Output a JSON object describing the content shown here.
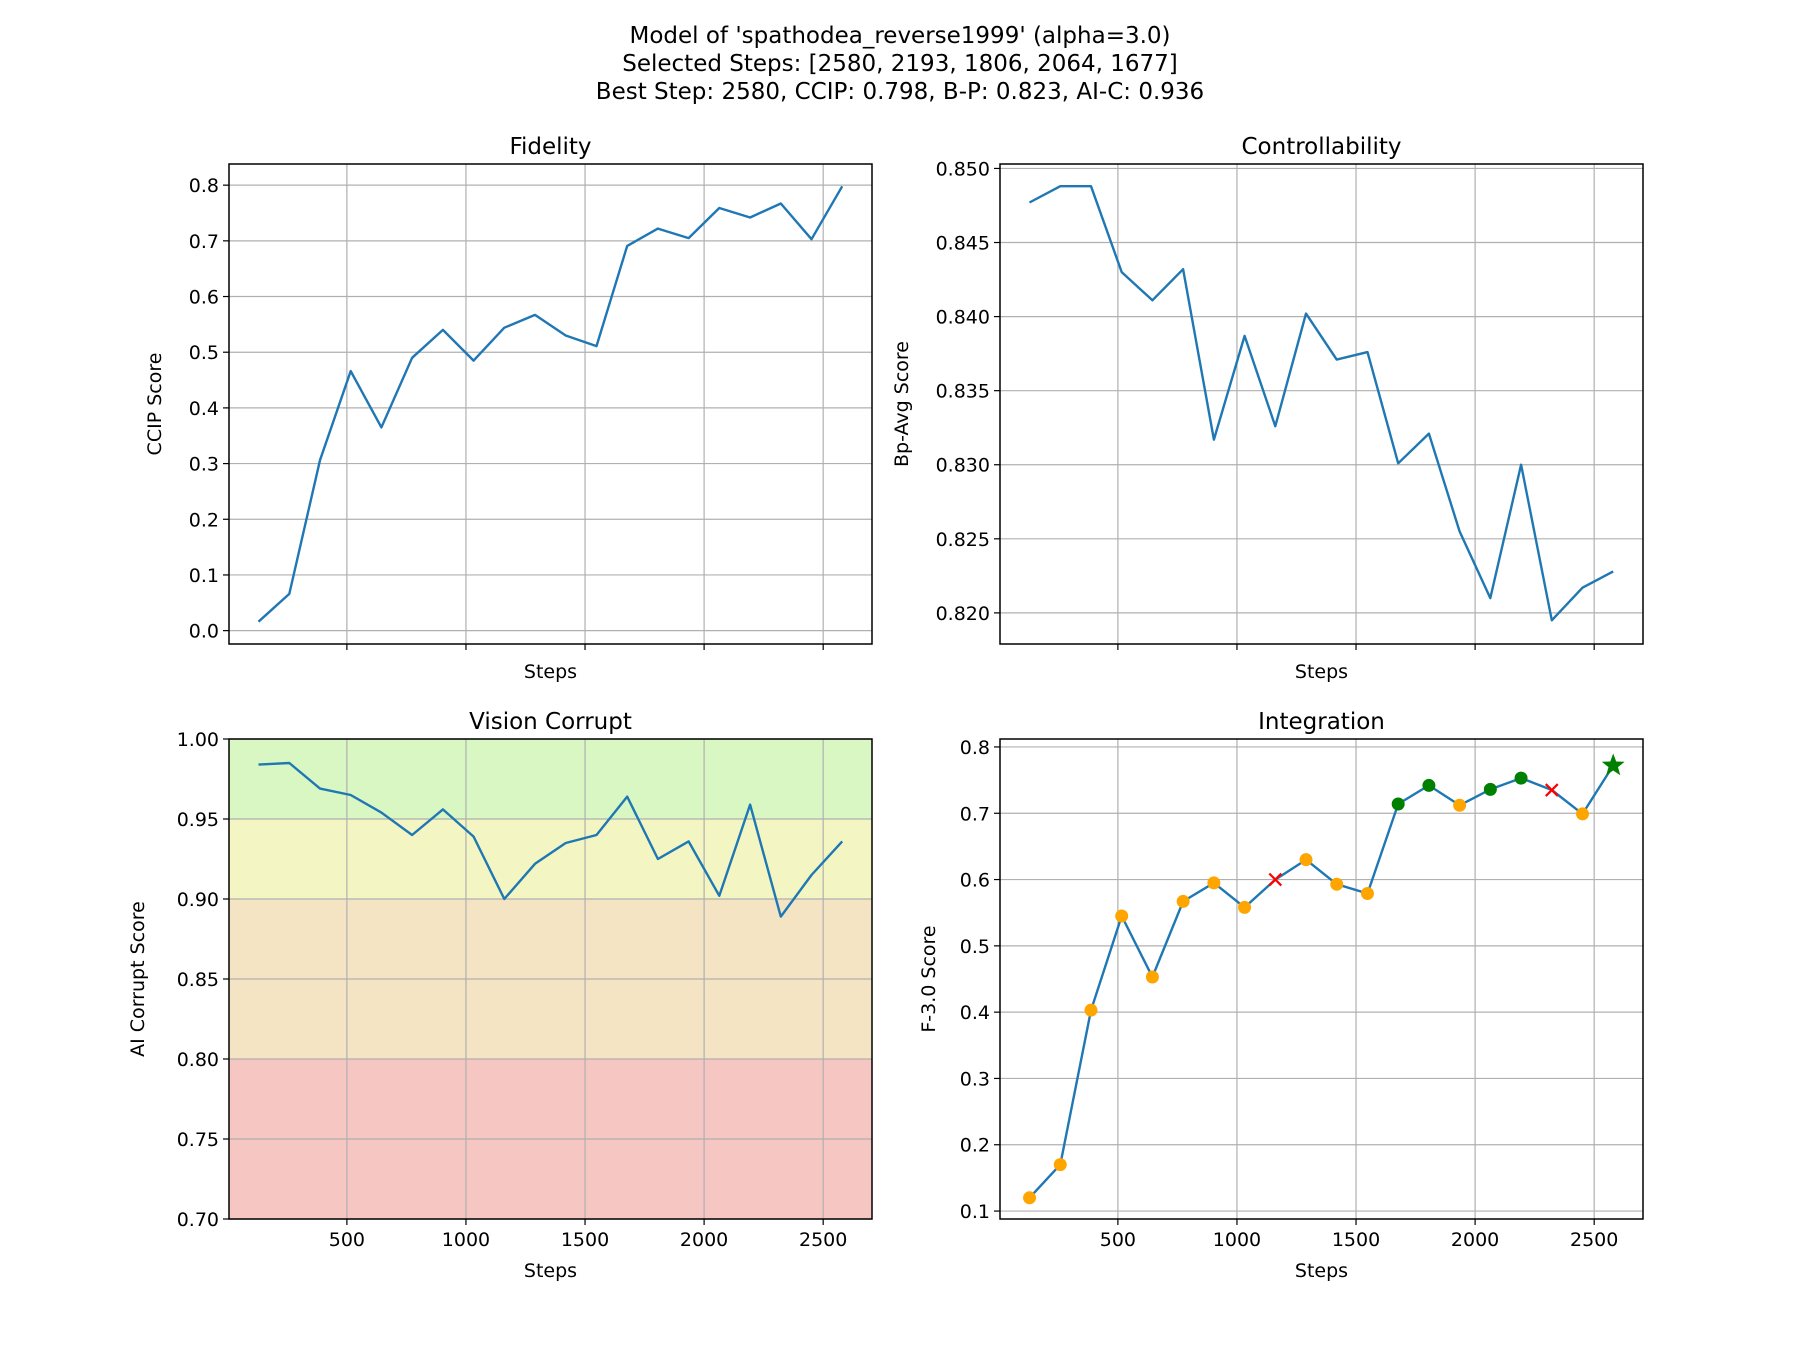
{
  "figure": {
    "title_lines": [
      "Model of 'spathodea_reverse1999' (alpha=3.0)",
      "Selected Steps: [2580, 2193, 1806, 2064, 1677]",
      "Best Step: 2580, CCIP: 0.798, B-P: 0.823, AI-C: 0.936"
    ]
  },
  "chart_data": [
    {
      "id": "fidelity",
      "type": "line",
      "title": "Fidelity",
      "xlabel": "Steps",
      "ylabel": "CCIP Score",
      "xlim": [
        5,
        2705
      ],
      "ylim": [
        -0.024,
        0.838
      ],
      "xticks": [
        500,
        1000,
        1500,
        2000,
        2500
      ],
      "show_xtick_labels": false,
      "yticks": [
        0.0,
        0.1,
        0.2,
        0.3,
        0.4,
        0.5,
        0.6,
        0.7,
        0.8
      ],
      "ytick_labels": [
        "0.0",
        "0.1",
        "0.2",
        "0.3",
        "0.4",
        "0.5",
        "0.6",
        "0.7",
        "0.8"
      ],
      "grid": true,
      "line_color": "#1f77b4",
      "x": [
        129,
        258,
        387,
        516,
        645,
        774,
        903,
        1032,
        1161,
        1290,
        1419,
        1548,
        1677,
        1806,
        1935,
        2064,
        2193,
        2322,
        2451,
        2580
      ],
      "y": [
        0.016,
        0.066,
        0.306,
        0.466,
        0.365,
        0.49,
        0.54,
        0.485,
        0.544,
        0.567,
        0.53,
        0.511,
        0.691,
        0.722,
        0.705,
        0.759,
        0.742,
        0.767,
        0.703,
        0.798
      ]
    },
    {
      "id": "controllability",
      "type": "line",
      "title": "Controllability",
      "xlabel": "Steps",
      "ylabel": "Bp-Avg Score",
      "xlim": [
        5,
        2705
      ],
      "ylim": [
        0.8179,
        0.8503
      ],
      "xticks": [
        500,
        1000,
        1500,
        2000,
        2500
      ],
      "show_xtick_labels": false,
      "yticks": [
        0.82,
        0.825,
        0.83,
        0.835,
        0.84,
        0.845,
        0.85
      ],
      "ytick_labels": [
        "0.820",
        "0.825",
        "0.830",
        "0.835",
        "0.840",
        "0.845",
        "0.850"
      ],
      "grid": true,
      "line_color": "#1f77b4",
      "x": [
        129,
        258,
        387,
        516,
        645,
        774,
        903,
        1032,
        1161,
        1290,
        1419,
        1548,
        1677,
        1806,
        1935,
        2064,
        2193,
        2322,
        2451,
        2580
      ],
      "y": [
        0.8477,
        0.8488,
        0.8488,
        0.843,
        0.8411,
        0.8432,
        0.8317,
        0.8387,
        0.8326,
        0.8402,
        0.8371,
        0.8376,
        0.8301,
        0.8321,
        0.8255,
        0.821,
        0.83,
        0.8195,
        0.8217,
        0.8228
      ]
    },
    {
      "id": "vision_corrupt",
      "type": "line",
      "title": "Vision Corrupt",
      "xlabel": "Steps",
      "ylabel": "AI Corrupt Score",
      "xlim": [
        5,
        2705
      ],
      "ylim": [
        0.7,
        1.0
      ],
      "xticks": [
        500,
        1000,
        1500,
        2000,
        2500
      ],
      "xtick_labels": [
        "500",
        "1000",
        "1500",
        "2000",
        "2500"
      ],
      "yticks": [
        0.7,
        0.75,
        0.8,
        0.85,
        0.9,
        0.95,
        1.0
      ],
      "ytick_labels": [
        "0.70",
        "0.75",
        "0.80",
        "0.85",
        "0.90",
        "0.95",
        "1.00"
      ],
      "grid": true,
      "line_color": "#1f77b4",
      "bands": [
        {
          "from": 0.7,
          "to": 0.8,
          "color": "#f5c6c2"
        },
        {
          "from": 0.8,
          "to": 0.9,
          "color": "#f5e4c3"
        },
        {
          "from": 0.9,
          "to": 0.95,
          "color": "#f3f6c2"
        },
        {
          "from": 0.95,
          "to": 1.0,
          "color": "#d9f7c2"
        }
      ],
      "x": [
        129,
        258,
        387,
        516,
        645,
        774,
        903,
        1032,
        1161,
        1290,
        1419,
        1548,
        1677,
        1806,
        1935,
        2064,
        2193,
        2322,
        2451,
        2580
      ],
      "y": [
        0.984,
        0.985,
        0.969,
        0.965,
        0.954,
        0.94,
        0.956,
        0.939,
        0.9,
        0.922,
        0.935,
        0.94,
        0.964,
        0.925,
        0.936,
        0.902,
        0.959,
        0.889,
        0.915,
        0.936
      ]
    },
    {
      "id": "integration",
      "type": "line",
      "title": "Integration",
      "xlabel": "Steps",
      "ylabel": "F-3.0 Score",
      "xlim": [
        5,
        2705
      ],
      "ylim": [
        0.088,
        0.812
      ],
      "xticks": [
        500,
        1000,
        1500,
        2000,
        2500
      ],
      "xtick_labels": [
        "500",
        "1000",
        "1500",
        "2000",
        "2500"
      ],
      "yticks": [
        0.1,
        0.2,
        0.3,
        0.4,
        0.5,
        0.6,
        0.7,
        0.8
      ],
      "ytick_labels": [
        "0.1",
        "0.2",
        "0.3",
        "0.4",
        "0.5",
        "0.6",
        "0.7",
        "0.8"
      ],
      "grid": true,
      "line_color": "#1f77b4",
      "marker_colors": {
        "normal": "#ffa500",
        "selected": "#008000",
        "excluded": "#ff0000",
        "best": "#008000"
      },
      "x": [
        129,
        258,
        387,
        516,
        645,
        774,
        903,
        1032,
        1161,
        1290,
        1419,
        1548,
        1677,
        1806,
        1935,
        2064,
        2193,
        2322,
        2451,
        2580
      ],
      "y": [
        0.12,
        0.17,
        0.403,
        0.545,
        0.453,
        0.567,
        0.595,
        0.558,
        0.6,
        0.63,
        0.593,
        0.579,
        0.714,
        0.742,
        0.712,
        0.736,
        0.753,
        0.735,
        0.699,
        0.772
      ],
      "markers": [
        "normal",
        "normal",
        "normal",
        "normal",
        "normal",
        "normal",
        "normal",
        "normal",
        "excluded",
        "normal",
        "normal",
        "normal",
        "selected",
        "selected",
        "normal",
        "selected",
        "selected",
        "excluded",
        "normal",
        "best"
      ]
    }
  ]
}
